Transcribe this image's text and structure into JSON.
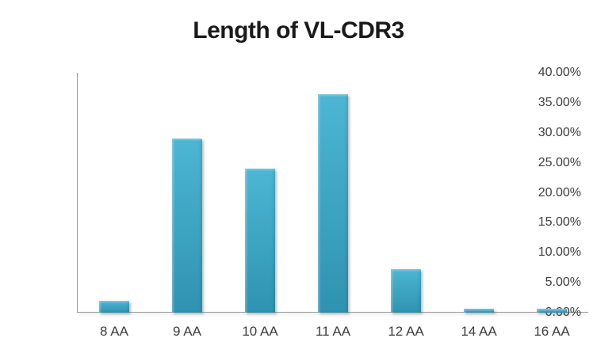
{
  "chart_data": {
    "type": "bar",
    "title": "Length of VL-CDR3",
    "categories": [
      "8 AA",
      "9 AA",
      "10 AA",
      "11 AA",
      "12 AA",
      "14 AA",
      "16 AA"
    ],
    "values": [
      2.0,
      29.0,
      24.0,
      36.5,
      7.2,
      0.7,
      0.7
    ],
    "value_unit": "percent",
    "xlabel": "",
    "ylabel": "",
    "ylim": [
      0,
      40
    ],
    "ytick_labels": [
      "0.00%",
      "5.00%",
      "10.00%",
      "15.00%",
      "20.00%",
      "25.00%",
      "30.00%",
      "35.00%",
      "40.00%"
    ],
    "grid": false,
    "legend": null,
    "colors": {
      "bar_top": "#4cb6d4",
      "bar_bottom": "#2e93b0",
      "axis_line": "#9c9c9c",
      "tick_label": "#3d3d3d",
      "title": "#1a1a1a",
      "background": "#ffffff"
    }
  }
}
